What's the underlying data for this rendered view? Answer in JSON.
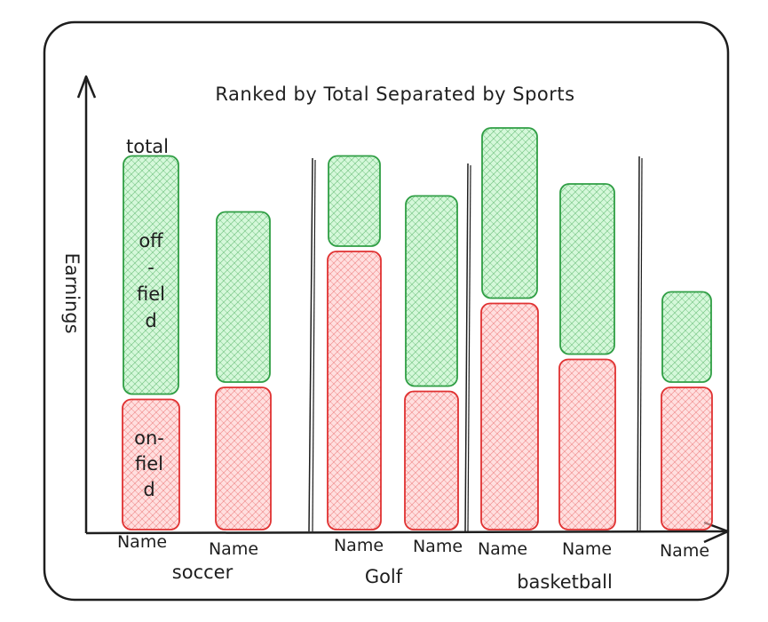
{
  "chart_data": {
    "type": "bar",
    "stacked": true,
    "title": "Ranked by Total Separated by Sports",
    "ylabel": "Earnings",
    "total_label": "total",
    "categories": [
      "Name",
      "Name",
      "Name",
      "Name",
      "Name",
      "Name",
      "Name"
    ],
    "groups": [
      {
        "name": "soccer",
        "members": [
          0,
          1
        ]
      },
      {
        "name": "Golf",
        "members": [
          2,
          3
        ]
      },
      {
        "name": "basketball",
        "members": [
          4,
          5,
          6
        ]
      }
    ],
    "ylim": [
      0,
      100
    ],
    "series": [
      {
        "name": "on-field",
        "values": [
          33,
          36,
          70,
          35,
          57,
          43,
          36
        ]
      },
      {
        "name": "off-field",
        "values": [
          60,
          43,
          23,
          48,
          43,
          43,
          23
        ]
      }
    ],
    "segment_labels": {
      "off": [
        "off",
        "-",
        "fiel",
        "d"
      ],
      "on": [
        "on-",
        "fiel",
        "d"
      ]
    },
    "colors": {
      "on_fill": "#ffc9c9",
      "on_stroke": "#e03131",
      "off_fill": "#b2f2bb",
      "off_stroke": "#2f9e44",
      "ink": "#1e1e1e"
    },
    "grid": false,
    "legend": "none"
  }
}
